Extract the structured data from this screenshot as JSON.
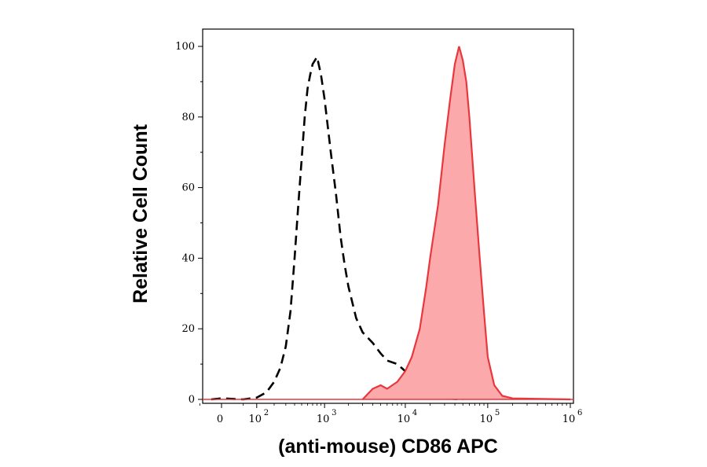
{
  "chart_data": {
    "type": "area",
    "xlabel": "(anti-mouse) CD86 APC",
    "ylabel": "Relative Cell Count",
    "x_scale": "biexponential",
    "ylim": [
      0,
      100
    ],
    "y_ticks": [
      "0",
      "20",
      "40",
      "60",
      "80",
      "100"
    ],
    "x_ticks": [
      {
        "base": "0",
        "exp": ""
      },
      {
        "base": "10",
        "exp": "2"
      },
      {
        "base": "10",
        "exp": "3"
      },
      {
        "base": "10",
        "exp": "4"
      },
      {
        "base": "10",
        "exp": "5"
      },
      {
        "base": "10",
        "exp": "6"
      }
    ],
    "grid": false,
    "series": [
      {
        "style": "dashed",
        "color": "#000000",
        "points": [
          [
            -20,
            0
          ],
          [
            0,
            0.3
          ],
          [
            50,
            0
          ],
          [
            100,
            0.5
          ],
          [
            150,
            2
          ],
          [
            200,
            5
          ],
          [
            250,
            9
          ],
          [
            300,
            15
          ],
          [
            350,
            25
          ],
          [
            400,
            40
          ],
          [
            450,
            55
          ],
          [
            500,
            68
          ],
          [
            550,
            80
          ],
          [
            600,
            88
          ],
          [
            650,
            92
          ],
          [
            700,
            95
          ],
          [
            800,
            97
          ],
          [
            900,
            92
          ],
          [
            1000,
            85
          ],
          [
            1200,
            70
          ],
          [
            1400,
            58
          ],
          [
            1600,
            46
          ],
          [
            1800,
            38
          ],
          [
            2000,
            32
          ],
          [
            2500,
            23
          ],
          [
            3000,
            19
          ],
          [
            4000,
            16
          ],
          [
            5000,
            13
          ],
          [
            6000,
            11
          ],
          [
            8000,
            10
          ],
          [
            10000,
            8
          ],
          [
            12000,
            5
          ],
          [
            15000,
            3
          ],
          [
            20000,
            1
          ],
          [
            30000,
            0.3
          ],
          [
            50000,
            0
          ]
        ]
      },
      {
        "style": "filled",
        "color": "#e8373d",
        "fill": "#fca9ab",
        "points": [
          [
            3000,
            0
          ],
          [
            4000,
            3
          ],
          [
            5000,
            4
          ],
          [
            6000,
            3
          ],
          [
            8000,
            5
          ],
          [
            10000,
            8
          ],
          [
            12000,
            12
          ],
          [
            15000,
            20
          ],
          [
            18000,
            32
          ],
          [
            20000,
            40
          ],
          [
            25000,
            55
          ],
          [
            30000,
            72
          ],
          [
            35000,
            85
          ],
          [
            40000,
            95
          ],
          [
            45000,
            100
          ],
          [
            50000,
            96
          ],
          [
            55000,
            90
          ],
          [
            60000,
            80
          ],
          [
            70000,
            58
          ],
          [
            80000,
            40
          ],
          [
            90000,
            25
          ],
          [
            100000,
            12
          ],
          [
            120000,
            4
          ],
          [
            150000,
            1
          ],
          [
            200000,
            0.3
          ],
          [
            1000000,
            0
          ]
        ]
      }
    ]
  }
}
